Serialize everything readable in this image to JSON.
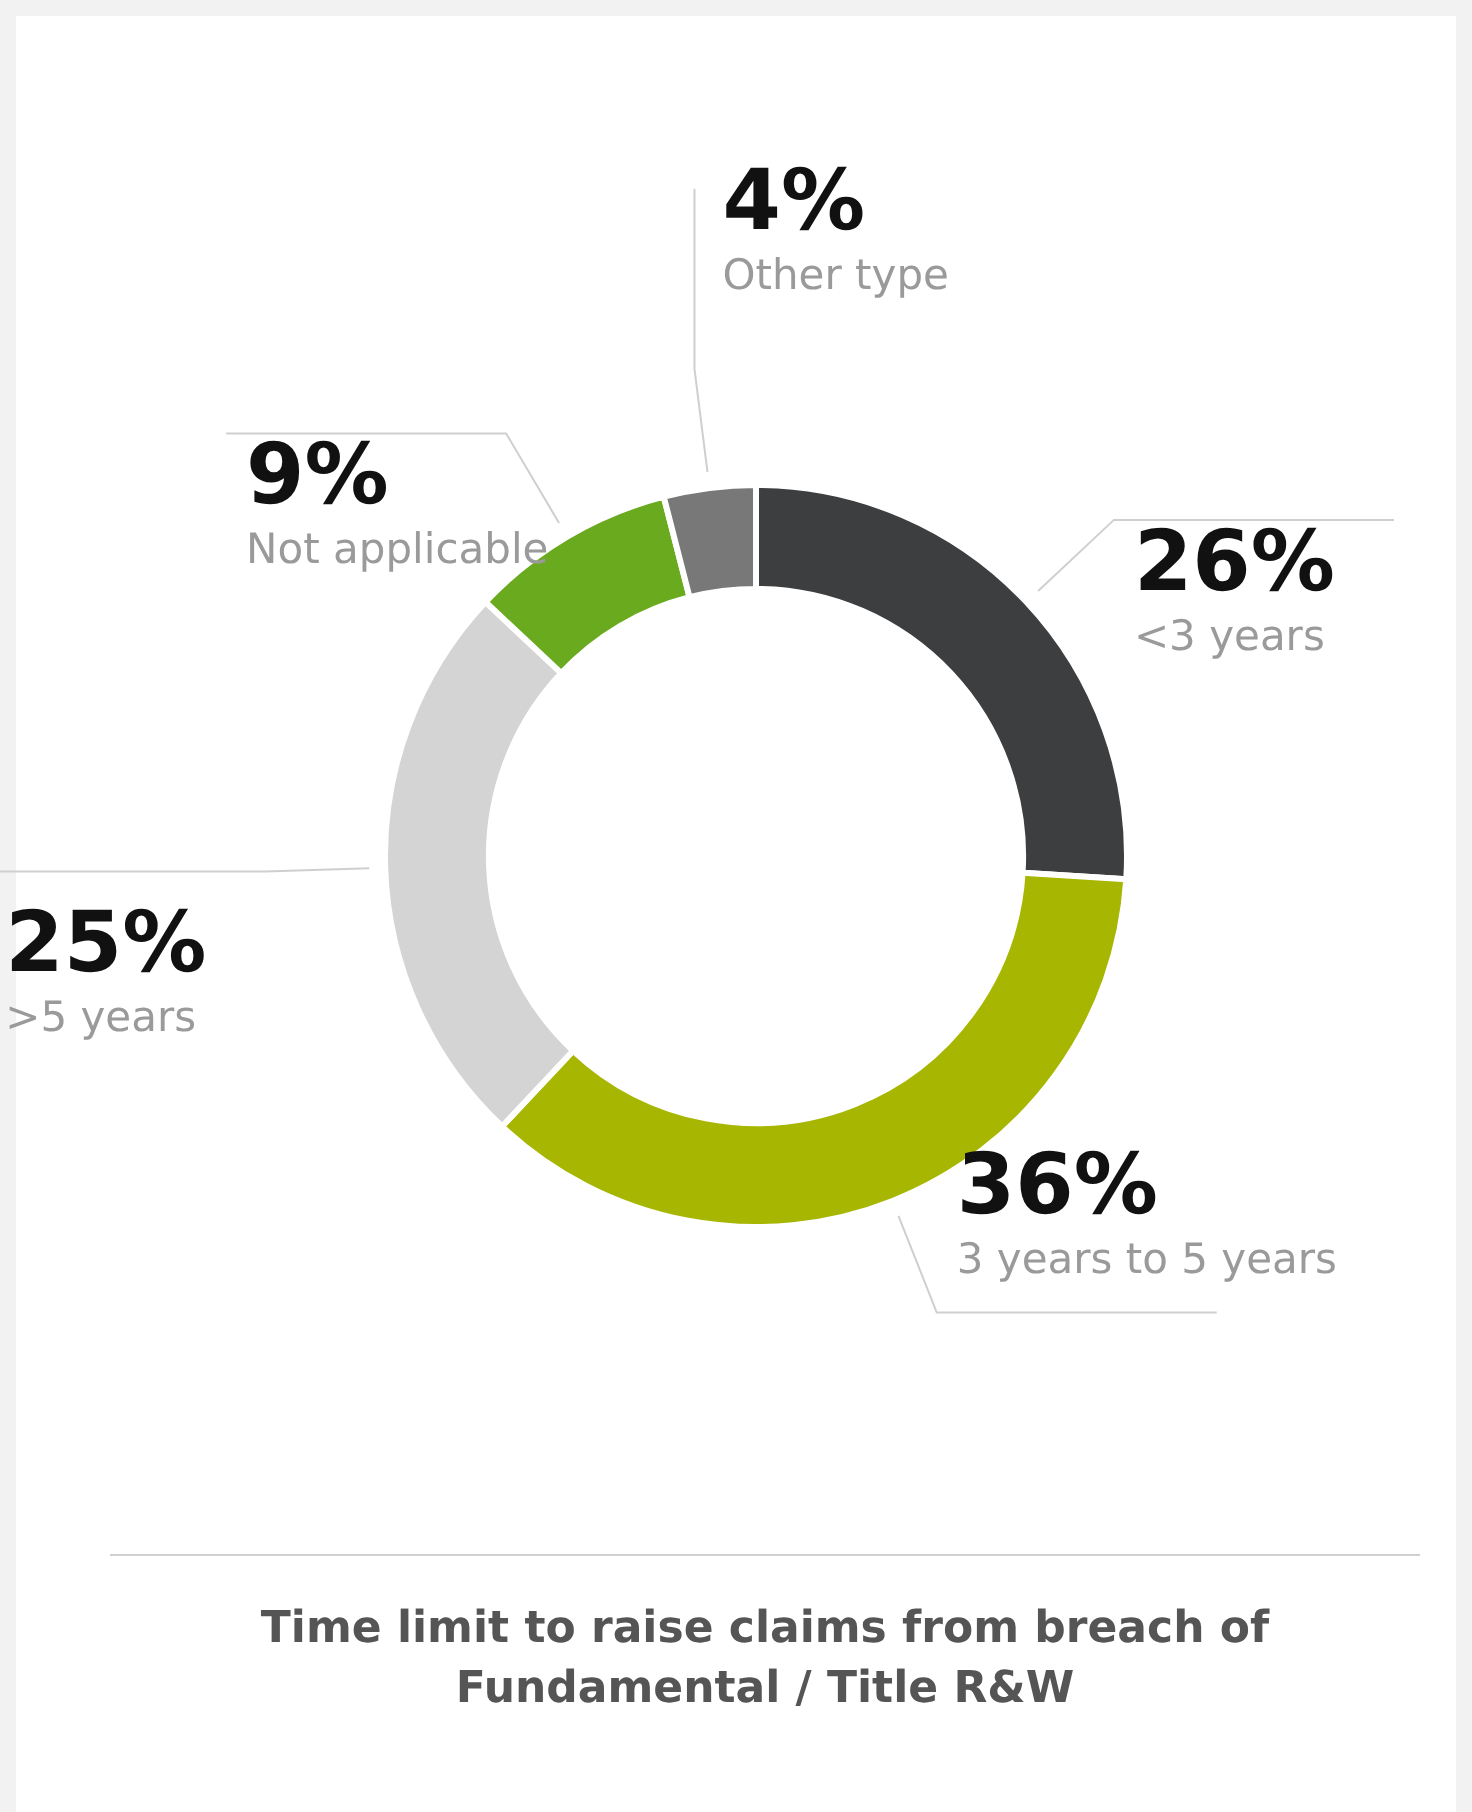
{
  "chart_data": {
    "type": "donut",
    "title": "Time limit to raise claims from breach of Fundamental / Title R&W",
    "categories": [
      "<3 years",
      "3 years to 5 years",
      ">5 years",
      "Not applicable",
      "Other type"
    ],
    "values": [
      26,
      36,
      25,
      9,
      4
    ],
    "value_labels": [
      "26%",
      "36%",
      "25%",
      "9%",
      "4%"
    ],
    "colors": [
      "#3c3e40",
      "#a7b600",
      "#d4d4d4",
      "#6aaa1e",
      "#787878"
    ],
    "legend": false
  }
}
